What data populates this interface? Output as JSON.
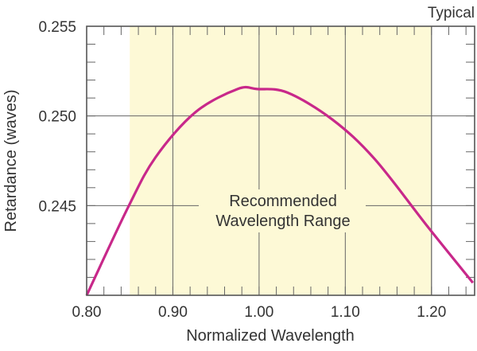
{
  "chart_data": {
    "type": "line",
    "title": "",
    "corner_note": "Typical",
    "xlabel": "Normalized Wavelength",
    "ylabel": "Retardance (waves)",
    "xlim": [
      0.8,
      1.25
    ],
    "ylim": [
      0.24,
      0.255
    ],
    "x_ticks": [
      0.8,
      0.9,
      1.0,
      1.1,
      1.2
    ],
    "x_tick_labels": [
      "0.80",
      "0.90",
      "1.00",
      "1.10",
      "1.20"
    ],
    "y_ticks": [
      0.245,
      0.25,
      0.255
    ],
    "y_tick_labels": [
      "0.245",
      "0.250",
      "0.255"
    ],
    "grid": true,
    "shaded_region": {
      "x_range": [
        0.85,
        1.2
      ],
      "label_lines": [
        "Recommended",
        "Wavelength Range"
      ],
      "color": "#fdf9d6"
    },
    "series": [
      {
        "color": "#c8288a",
        "x": [
          0.8,
          0.848,
          0.88,
          0.926,
          0.975,
          0.998,
          1.033,
          1.085,
          1.134,
          1.196,
          1.248
        ],
        "y": [
          0.24,
          0.2449,
          0.2477,
          0.2502,
          0.2515,
          0.2515,
          0.2513,
          0.2498,
          0.2476,
          0.2438,
          0.2407
        ]
      }
    ]
  }
}
